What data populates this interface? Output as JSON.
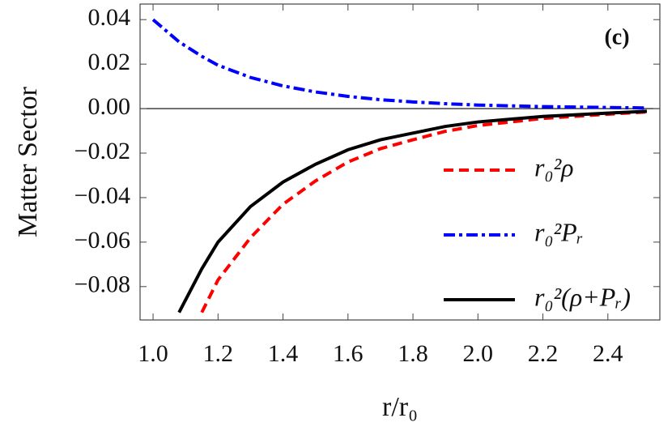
{
  "chart_data": {
    "type": "line",
    "y_label": "Matter Sector",
    "x_label": "r/r₀",
    "annotation": "(c)",
    "x": [
      1.0,
      1.08,
      1.15,
      1.2,
      1.3,
      1.4,
      1.5,
      1.6,
      1.7,
      1.8,
      1.9,
      2.0,
      2.2,
      2.4,
      2.52
    ],
    "series": [
      {
        "name": "r₀²ρ",
        "color": "#ff0000",
        "dash": "dashed",
        "values": [
          null,
          null,
          -0.0916,
          -0.077,
          -0.058,
          -0.043,
          -0.0325,
          -0.024,
          -0.018,
          -0.014,
          -0.0102,
          -0.0076,
          -0.0044,
          -0.0025,
          -0.0015
        ]
      },
      {
        "name": "r₀²Pᵣ",
        "color": "#0000ff",
        "dash": "dashdot",
        "values": [
          0.04,
          0.03,
          0.0235,
          0.0195,
          0.014,
          0.0102,
          0.0075,
          0.0055,
          0.004,
          0.003,
          0.0022,
          0.0016,
          0.0009,
          0.0005,
          0.0003
        ]
      },
      {
        "name": "r₀²(ρ+Pᵣ)",
        "color": "#000000",
        "dash": "solid",
        "values": [
          null,
          -0.0916,
          -0.072,
          -0.06,
          -0.044,
          -0.033,
          -0.025,
          -0.0185,
          -0.014,
          -0.011,
          -0.008,
          -0.006,
          -0.0035,
          -0.002,
          -0.0012
        ]
      }
    ],
    "xlim": [
      0.96,
      2.56
    ],
    "ylim": [
      -0.095,
      0.047
    ],
    "xticks": [
      {
        "value": 1,
        "label": "1.0"
      },
      {
        "value": 1.2,
        "label": "1.2"
      },
      {
        "value": 1.4,
        "label": "1.4"
      },
      {
        "value": 1.6,
        "label": "1.6"
      },
      {
        "value": 1.8,
        "label": "1.8"
      },
      {
        "value": 2,
        "label": "2.0"
      },
      {
        "value": 2.2,
        "label": "2.2"
      },
      {
        "value": 2.4,
        "label": "2.4"
      }
    ],
    "yticks": [
      {
        "value": 0.04,
        "label": "0.04"
      },
      {
        "value": 0.02,
        "label": "0.02"
      },
      {
        "value": 0,
        "label": "0.00"
      },
      {
        "value": -0.02,
        "label": "−0.02"
      },
      {
        "value": -0.04,
        "label": "−0.04"
      },
      {
        "value": -0.06,
        "label": "−0.06"
      },
      {
        "value": -0.08,
        "label": "−0.08"
      }
    ],
    "zero_line": true,
    "grid": false,
    "legend": "right"
  }
}
